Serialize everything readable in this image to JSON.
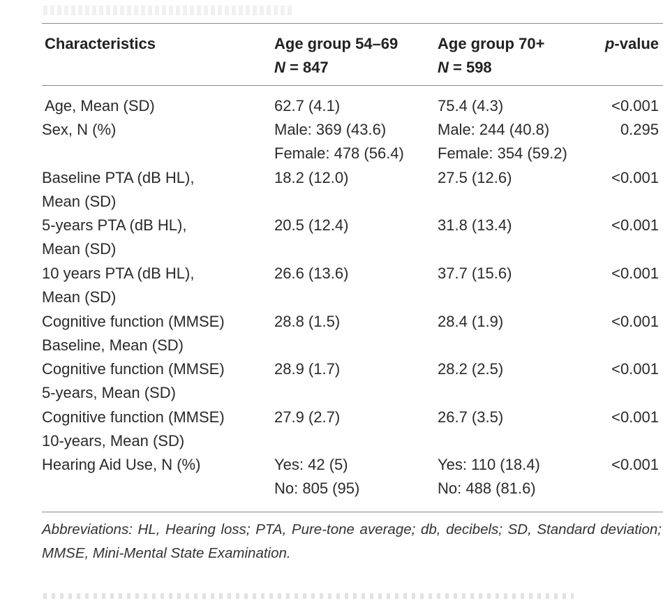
{
  "header": {
    "characteristics": "Characteristics",
    "group1_label": "Age group 54–69",
    "group1_n_prefix": "N",
    "group1_n_value": " = 847",
    "group2_label": "Age group 70+",
    "group2_n_prefix": "N",
    "group2_n_value": " = 598",
    "pvalue_prefix": "p",
    "pvalue_suffix": "-value"
  },
  "rows": [
    {
      "char": [
        "Age, Mean (SD)"
      ],
      "g1": [
        "62.7 (4.1)"
      ],
      "g2": [
        "75.4 (4.3)"
      ],
      "p": "<0.001"
    },
    {
      "char": [
        "Sex, N (%)"
      ],
      "g1": [
        "Male: 369 (43.6)",
        "Female: 478 (56.4)"
      ],
      "g2": [
        "Male: 244 (40.8)",
        "Female: 354 (59.2)"
      ],
      "p": "0.295"
    },
    {
      "char": [
        "Baseline PTA (dB HL),",
        "Mean (SD)"
      ],
      "g1": [
        "18.2 (12.0)"
      ],
      "g2": [
        "27.5 (12.6)"
      ],
      "p": "<0.001"
    },
    {
      "char": [
        "5-years PTA (dB HL),",
        "Mean (SD)"
      ],
      "g1": [
        "20.5 (12.4)"
      ],
      "g2": [
        "31.8 (13.4)"
      ],
      "p": "<0.001"
    },
    {
      "char": [
        "10 years PTA (dB HL),",
        "Mean (SD)"
      ],
      "g1": [
        "26.6 (13.6)"
      ],
      "g2": [
        "37.7 (15.6)"
      ],
      "p": "<0.001"
    },
    {
      "char": [
        "Cognitive function (MMSE)",
        "Baseline, Mean (SD)"
      ],
      "g1": [
        "28.8 (1.5)"
      ],
      "g2": [
        "28.4 (1.9)"
      ],
      "p": "<0.001"
    },
    {
      "char": [
        "Cognitive function (MMSE)",
        "5-years, Mean (SD)"
      ],
      "g1": [
        "28.9 (1.7)"
      ],
      "g2": [
        "28.2 (2.5)"
      ],
      "p": "<0.001"
    },
    {
      "char": [
        "Cognitive function (MMSE)",
        "10-years, Mean (SD)"
      ],
      "g1": [
        "27.9 (2.7)"
      ],
      "g2": [
        "26.7 (3.5)"
      ],
      "p": "<0.001"
    },
    {
      "char": [
        "Hearing Aid Use, N (%)"
      ],
      "g1": [
        "Yes: 42 (5)",
        "No: 805 (95)"
      ],
      "g2": [
        "Yes: 110 (18.4)",
        "No: 488 (81.6)"
      ],
      "p": "<0.001"
    }
  ],
  "footnote": "Abbreviations: HL, Hearing loss; PTA, Pure-tone average; db, decibels; SD, Standard deviation; MMSE, Mini-Mental State Examination."
}
